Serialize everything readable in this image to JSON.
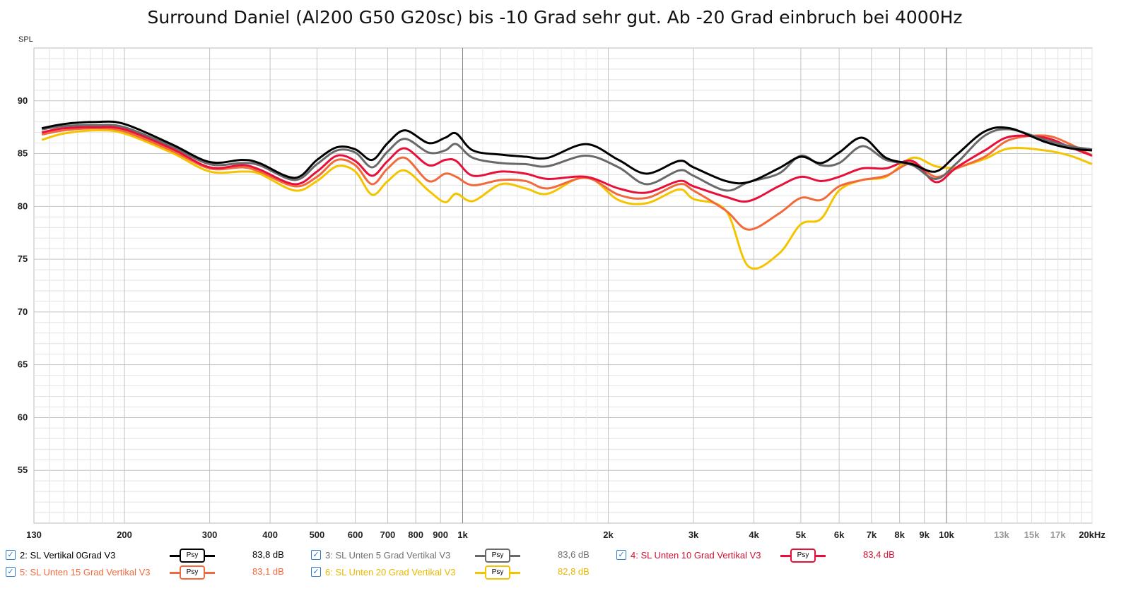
{
  "chart_data": {
    "type": "line",
    "title": "Surround Daniel (Al200 G50 G20sc) bis -10 Grad sehr gut. Ab -20 Grad einbruch bei 4000Hz",
    "ylabel": "SPL",
    "xlabel": "",
    "xscale": "log",
    "xlim": [
      130,
      20000
    ],
    "ylim": [
      50,
      95
    ],
    "grid": true,
    "yticks": [
      55,
      60,
      65,
      70,
      75,
      80,
      85,
      90
    ],
    "xticks": [
      {
        "v": 130,
        "label": "130"
      },
      {
        "v": 200,
        "label": "200"
      },
      {
        "v": 300,
        "label": "300"
      },
      {
        "v": 400,
        "label": "400"
      },
      {
        "v": 500,
        "label": "500"
      },
      {
        "v": 600,
        "label": "600"
      },
      {
        "v": 700,
        "label": "700"
      },
      {
        "v": 800,
        "label": "800"
      },
      {
        "v": 900,
        "label": "900"
      },
      {
        "v": 1000,
        "label": "1k"
      },
      {
        "v": 2000,
        "label": "2k"
      },
      {
        "v": 3000,
        "label": "3k"
      },
      {
        "v": 4000,
        "label": "4k"
      },
      {
        "v": 5000,
        "label": "5k"
      },
      {
        "v": 6000,
        "label": "6k"
      },
      {
        "v": 7000,
        "label": "7k"
      },
      {
        "v": 8000,
        "label": "8k"
      },
      {
        "v": 9000,
        "label": "9k"
      },
      {
        "v": 10000,
        "label": "10k"
      },
      {
        "v": 13000,
        "label": "13k",
        "faded": true
      },
      {
        "v": 15000,
        "label": "15k",
        "faded": true
      },
      {
        "v": 17000,
        "label": "17k",
        "faded": true
      },
      {
        "v": 20000,
        "label": "20kHz"
      }
    ],
    "x": [
      135,
      150,
      175,
      200,
      250,
      300,
      350,
      380,
      450,
      500,
      550,
      600,
      650,
      700,
      760,
      850,
      920,
      970,
      1050,
      1200,
      1350,
      1500,
      1800,
      2100,
      2400,
      2800,
      3000,
      3500,
      3900,
      4500,
      5000,
      5500,
      6000,
      6700,
      7500,
      8500,
      9500,
      10500,
      12000,
      13500,
      16000,
      18000,
      20000
    ],
    "series": [
      {
        "name": "2: SL Vertikal 0Grad V3",
        "color": "#000000",
        "value_label": "83,8 dB",
        "values": [
          87.4,
          87.8,
          88.0,
          87.8,
          85.9,
          84.2,
          84.4,
          84.1,
          82.7,
          84.4,
          85.6,
          85.4,
          84.4,
          86.0,
          87.2,
          86.0,
          86.5,
          86.9,
          85.3,
          84.9,
          84.7,
          84.6,
          85.9,
          84.4,
          83.1,
          84.3,
          83.7,
          82.4,
          82.3,
          83.6,
          84.7,
          84.1,
          85.1,
          86.5,
          84.6,
          84.0,
          83.3,
          84.9,
          87.1,
          87.4,
          86.1,
          85.5,
          85.3
        ]
      },
      {
        "name": "3: SL Unten 5 Grad Vertikal V3",
        "color": "#696969",
        "value_label": "83,6 dB",
        "values": [
          87.3,
          87.6,
          87.7,
          87.5,
          85.7,
          84.0,
          84.1,
          83.9,
          82.5,
          84.0,
          85.3,
          85.1,
          83.7,
          85.2,
          86.4,
          85.1,
          85.3,
          85.9,
          84.6,
          84.1,
          84.0,
          83.8,
          84.8,
          83.7,
          82.1,
          83.4,
          82.9,
          81.5,
          82.3,
          83.1,
          84.8,
          83.9,
          84.1,
          85.7,
          84.4,
          83.9,
          82.6,
          84.1,
          86.7,
          87.3,
          86.3,
          85.7,
          85.4
        ]
      },
      {
        "name": "4: SL Unten 10 Grad Vertikal V3",
        "color": "#e8103a",
        "value_label": "83,4 dB",
        "values": [
          87.0,
          87.4,
          87.5,
          87.3,
          85.5,
          83.7,
          83.9,
          83.5,
          82.1,
          83.3,
          84.8,
          84.3,
          82.9,
          84.3,
          85.5,
          83.9,
          84.4,
          84.3,
          82.9,
          83.3,
          83.1,
          82.6,
          82.8,
          81.7,
          81.3,
          82.4,
          81.9,
          80.9,
          80.5,
          81.9,
          82.8,
          82.4,
          82.8,
          83.6,
          83.6,
          84.3,
          82.3,
          83.7,
          85.3,
          86.6,
          86.5,
          85.6,
          84.8
        ]
      },
      {
        "name": "5: SL Unten 15 Grad Vertikal V3",
        "color": "#f26a3c",
        "value_label": "83,1 dB",
        "values": [
          86.8,
          87.2,
          87.4,
          87.1,
          85.3,
          83.6,
          83.7,
          83.3,
          81.9,
          82.8,
          84.4,
          83.9,
          82.1,
          83.6,
          84.6,
          82.4,
          83.1,
          82.8,
          82.0,
          82.5,
          82.4,
          81.7,
          82.7,
          81.1,
          80.8,
          82.1,
          81.5,
          79.6,
          77.8,
          79.3,
          80.8,
          80.6,
          81.9,
          82.5,
          82.9,
          84.1,
          82.8,
          83.6,
          84.7,
          86.3,
          86.7,
          85.9,
          84.8
        ]
      },
      {
        "name": "6: SL Unten 20 Grad Vertikal V3",
        "color": "#f5c400",
        "value_label": "82,8 dB",
        "values": [
          86.3,
          86.9,
          87.2,
          86.9,
          85.1,
          83.3,
          83.3,
          83.1,
          81.5,
          82.4,
          83.8,
          83.3,
          81.1,
          82.4,
          83.4,
          81.5,
          80.4,
          81.2,
          80.5,
          82.1,
          81.7,
          81.2,
          82.8,
          80.6,
          80.3,
          81.6,
          80.7,
          79.6,
          74.3,
          75.5,
          78.3,
          78.8,
          81.5,
          82.5,
          82.8,
          84.6,
          83.8,
          83.7,
          84.5,
          85.5,
          85.3,
          84.8,
          84.0
        ]
      }
    ]
  },
  "legend": {
    "checkbox_glyph": "✓",
    "psy_label": "Psy",
    "items": [
      {
        "label": "2: SL Vertikal 0Grad V3",
        "value": "83,8 dB",
        "color": "#000000",
        "text_color": "#000000"
      },
      {
        "label": "3: SL Unten 5 Grad Vertikal V3",
        "value": "83,6 dB",
        "color": "#696969",
        "text_color": "#707070"
      },
      {
        "label": "4: SL Unten 10 Grad Vertikal V3",
        "value": "83,4 dB",
        "color": "#e8103a",
        "text_color": "#d01030"
      },
      {
        "label": "5: SL Unten 15 Grad Vertikal V3",
        "value": "83,1 dB",
        "color": "#f26a3c",
        "text_color": "#f26a3c"
      },
      {
        "label": "6: SL Unten 20 Grad Vertikal V3",
        "value": "82,8 dB",
        "color": "#f5c400",
        "text_color": "#e8b800"
      }
    ]
  }
}
